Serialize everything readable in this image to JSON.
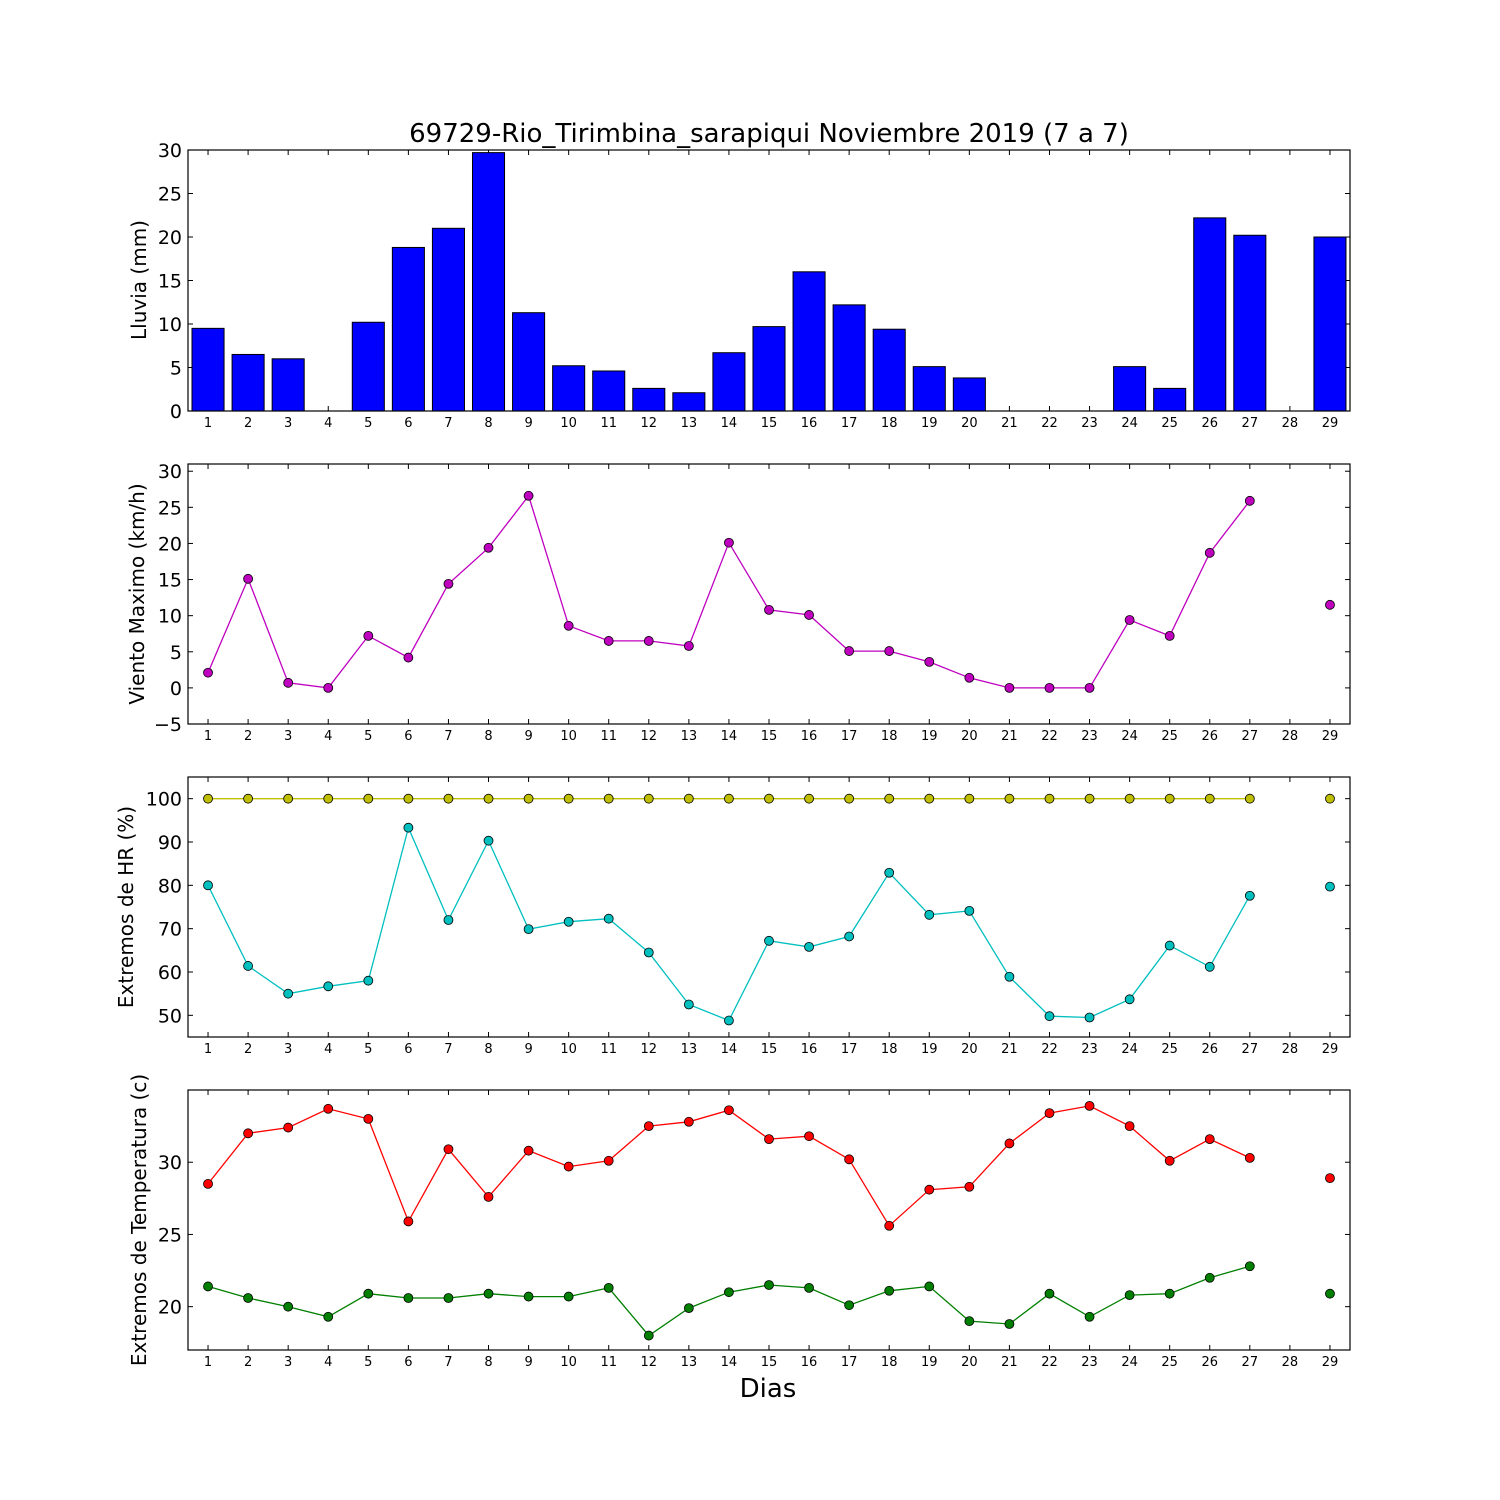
{
  "chart_data": [
    {
      "type": "bar",
      "title": "69729-Rio_Tirimbina_sarapiqui Noviembre 2019  (7 a 7)",
      "xlabel": "",
      "ylabel": "Lluvia (mm)",
      "categories": [
        "1",
        "2",
        "3",
        "4",
        "5",
        "6",
        "7",
        "8",
        "9",
        "10",
        "11",
        "12",
        "13",
        "14",
        "15",
        "16",
        "17",
        "18",
        "19",
        "20",
        "21",
        "22",
        "23",
        "24",
        "25",
        "26",
        "27",
        "28",
        "29"
      ],
      "values": [
        9.5,
        6.5,
        6.0,
        0,
        10.2,
        18.8,
        21.0,
        29.7,
        11.3,
        5.2,
        4.6,
        2.6,
        2.1,
        6.7,
        9.7,
        16.0,
        12.2,
        9.4,
        5.1,
        3.8,
        0,
        0,
        0,
        5.1,
        2.6,
        22.2,
        20.2,
        null,
        20.0
      ],
      "ylim": [
        0,
        30
      ],
      "yticks": [
        0,
        5,
        10,
        15,
        20,
        25,
        30
      ],
      "colors": [
        "#0000ff"
      ]
    },
    {
      "type": "line",
      "xlabel": "",
      "ylabel": "Viento Maximo (km/h)",
      "categories": [
        "1",
        "2",
        "3",
        "4",
        "5",
        "6",
        "7",
        "8",
        "9",
        "10",
        "11",
        "12",
        "13",
        "14",
        "15",
        "16",
        "17",
        "18",
        "19",
        "20",
        "21",
        "22",
        "23",
        "24",
        "25",
        "26",
        "27",
        "28",
        "29"
      ],
      "series": [
        {
          "values": [
            2.1,
            15.1,
            0.7,
            0,
            7.2,
            4.2,
            14.4,
            19.4,
            26.6,
            8.6,
            6.5,
            6.5,
            5.8,
            20.1,
            10.8,
            10.1,
            5.1,
            5.1,
            3.6,
            1.4,
            0,
            0,
            0,
            9.4,
            7.2,
            18.7,
            25.9,
            null,
            11.5
          ],
          "color": "#bf00bf"
        }
      ],
      "ylim": [
        -5,
        31
      ],
      "yticks": [
        -5,
        0,
        5,
        10,
        15,
        20,
        25,
        30
      ]
    },
    {
      "type": "line",
      "xlabel": "",
      "ylabel": "Extremos de HR (%)",
      "categories": [
        "1",
        "2",
        "3",
        "4",
        "5",
        "6",
        "7",
        "8",
        "9",
        "10",
        "11",
        "12",
        "13",
        "14",
        "15",
        "16",
        "17",
        "18",
        "19",
        "20",
        "21",
        "22",
        "23",
        "24",
        "25",
        "26",
        "27",
        "28",
        "29"
      ],
      "series": [
        {
          "values": [
            100,
            100,
            100,
            100,
            100,
            100,
            100,
            100,
            100,
            100,
            100,
            100,
            100,
            100,
            100,
            100,
            100,
            100,
            100,
            100,
            100,
            100,
            100,
            100,
            100,
            100,
            100,
            null,
            100
          ],
          "color": "#bfbf00"
        },
        {
          "values": [
            80,
            61.4,
            55,
            56.7,
            58,
            93.3,
            72,
            90.3,
            69.9,
            71.6,
            72.3,
            64.5,
            52.5,
            48.8,
            67.2,
            65.8,
            68.2,
            82.9,
            73.2,
            74.1,
            58.9,
            49.8,
            49.5,
            53.7,
            66.1,
            61.2,
            77.6,
            null,
            79.7
          ],
          "color": "#00bfbf"
        }
      ],
      "ylim": [
        45,
        105
      ],
      "yticks": [
        50,
        60,
        70,
        80,
        90,
        100
      ]
    },
    {
      "type": "line",
      "xlabel": "Dias",
      "ylabel": "Extremos de Temperatura (c)",
      "categories": [
        "1",
        "2",
        "3",
        "4",
        "5",
        "6",
        "7",
        "8",
        "9",
        "10",
        "11",
        "12",
        "13",
        "14",
        "15",
        "16",
        "17",
        "18",
        "19",
        "20",
        "21",
        "22",
        "23",
        "24",
        "25",
        "26",
        "27",
        "28",
        "29"
      ],
      "series": [
        {
          "values": [
            28.5,
            32.0,
            32.4,
            33.7,
            33.0,
            25.9,
            30.9,
            27.6,
            30.8,
            29.7,
            30.1,
            32.5,
            32.8,
            33.6,
            31.6,
            31.8,
            30.2,
            25.6,
            28.1,
            28.3,
            31.3,
            33.4,
            33.9,
            32.5,
            30.1,
            31.6,
            30.3,
            null,
            28.9
          ],
          "color": "#ff0000"
        },
        {
          "values": [
            21.4,
            20.6,
            20.0,
            19.3,
            20.9,
            20.6,
            20.6,
            20.9,
            20.7,
            20.7,
            21.3,
            18.0,
            19.9,
            21.0,
            21.5,
            21.3,
            20.1,
            21.1,
            21.4,
            19.0,
            18.8,
            20.9,
            19.3,
            20.8,
            20.9,
            22.0,
            22.8,
            null,
            20.9
          ],
          "color": "#007f00"
        }
      ],
      "ylim": [
        17,
        35
      ],
      "yticks": [
        20,
        25,
        30
      ]
    }
  ]
}
